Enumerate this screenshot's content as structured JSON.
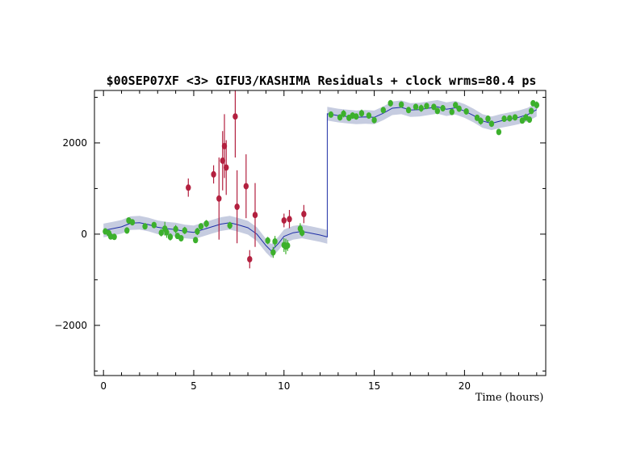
{
  "chart_data": {
    "type": "scatter",
    "title": "$00SEP07XF <3> GIFU3/KASHIMA  Residuals + clock wrms=80.4  ps",
    "xlabel": "Time (hours)",
    "ylabel": "",
    "xlim": [
      -0.5,
      24.5
    ],
    "ylim": [
      -3100,
      3150
    ],
    "xticks": [
      0,
      5,
      10,
      15,
      20
    ],
    "yticks": [
      -2000,
      0,
      2000
    ],
    "grid": false,
    "colors": {
      "used": "#3cb02c",
      "rejected": "#b3203f",
      "clock_line": "#1f2fa6",
      "clock_band": "#c6cce0"
    },
    "series": [
      {
        "role": "used",
        "points": [
          {
            "x": 0.1,
            "y": 60,
            "e": 70
          },
          {
            "x": 0.3,
            "y": 20,
            "e": 60
          },
          {
            "x": 0.4,
            "y": -50,
            "e": 60
          },
          {
            "x": 0.6,
            "y": -60,
            "e": 50
          },
          {
            "x": 1.3,
            "y": 80,
            "e": 70
          },
          {
            "x": 1.4,
            "y": 300,
            "e": 60
          },
          {
            "x": 1.6,
            "y": 260,
            "e": 60
          },
          {
            "x": 2.3,
            "y": 170,
            "e": 60
          },
          {
            "x": 2.8,
            "y": 200,
            "e": 50
          },
          {
            "x": 3.2,
            "y": 30,
            "e": 80
          },
          {
            "x": 3.4,
            "y": 120,
            "e": 150
          },
          {
            "x": 3.5,
            "y": 40,
            "e": 120
          },
          {
            "x": 3.7,
            "y": -60,
            "e": 80
          },
          {
            "x": 4.0,
            "y": 110,
            "e": 90
          },
          {
            "x": 4.1,
            "y": -40,
            "e": 60
          },
          {
            "x": 4.3,
            "y": -90,
            "e": 60
          },
          {
            "x": 4.5,
            "y": 80,
            "e": 80
          },
          {
            "x": 5.1,
            "y": -130,
            "e": 60
          },
          {
            "x": 5.2,
            "y": 60,
            "e": 80
          },
          {
            "x": 5.4,
            "y": 170,
            "e": 70
          },
          {
            "x": 5.7,
            "y": 230,
            "e": 80
          },
          {
            "x": 7.0,
            "y": 190,
            "e": 80
          },
          {
            "x": 9.1,
            "y": -140,
            "e": 80
          },
          {
            "x": 9.4,
            "y": -400,
            "e": 120
          },
          {
            "x": 9.5,
            "y": -160,
            "e": 120
          },
          {
            "x": 10.0,
            "y": -240,
            "e": 150
          },
          {
            "x": 10.1,
            "y": -270,
            "e": 170
          },
          {
            "x": 10.2,
            "y": -250,
            "e": 120
          },
          {
            "x": 10.9,
            "y": 120,
            "e": 120
          },
          {
            "x": 11.0,
            "y": 30,
            "e": 80
          },
          {
            "x": 12.6,
            "y": 2620,
            "e": 60
          },
          {
            "x": 13.1,
            "y": 2560,
            "e": 60
          },
          {
            "x": 13.3,
            "y": 2640,
            "e": 80
          },
          {
            "x": 13.6,
            "y": 2550,
            "e": 60
          },
          {
            "x": 13.8,
            "y": 2600,
            "e": 70
          },
          {
            "x": 14.0,
            "y": 2580,
            "e": 60
          },
          {
            "x": 14.3,
            "y": 2650,
            "e": 80
          },
          {
            "x": 14.7,
            "y": 2600,
            "e": 60
          },
          {
            "x": 15.0,
            "y": 2500,
            "e": 60
          },
          {
            "x": 15.5,
            "y": 2720,
            "e": 60
          },
          {
            "x": 15.9,
            "y": 2870,
            "e": 70
          },
          {
            "x": 16.5,
            "y": 2840,
            "e": 60
          },
          {
            "x": 16.9,
            "y": 2720,
            "e": 60
          },
          {
            "x": 17.3,
            "y": 2790,
            "e": 60
          },
          {
            "x": 17.6,
            "y": 2760,
            "e": 80
          },
          {
            "x": 17.9,
            "y": 2810,
            "e": 60
          },
          {
            "x": 18.3,
            "y": 2790,
            "e": 60
          },
          {
            "x": 18.5,
            "y": 2700,
            "e": 60
          },
          {
            "x": 18.8,
            "y": 2760,
            "e": 70
          },
          {
            "x": 19.3,
            "y": 2680,
            "e": 70
          },
          {
            "x": 19.5,
            "y": 2830,
            "e": 60
          },
          {
            "x": 19.7,
            "y": 2750,
            "e": 60
          },
          {
            "x": 20.1,
            "y": 2690,
            "e": 60
          },
          {
            "x": 20.7,
            "y": 2550,
            "e": 60
          },
          {
            "x": 20.9,
            "y": 2480,
            "e": 80
          },
          {
            "x": 21.3,
            "y": 2530,
            "e": 60
          },
          {
            "x": 21.5,
            "y": 2420,
            "e": 60
          },
          {
            "x": 21.9,
            "y": 2240,
            "e": 60
          },
          {
            "x": 22.2,
            "y": 2530,
            "e": 60
          },
          {
            "x": 22.5,
            "y": 2540,
            "e": 60
          },
          {
            "x": 22.8,
            "y": 2560,
            "e": 60
          },
          {
            "x": 23.2,
            "y": 2490,
            "e": 60
          },
          {
            "x": 23.4,
            "y": 2560,
            "e": 80
          },
          {
            "x": 23.6,
            "y": 2510,
            "e": 60
          },
          {
            "x": 23.7,
            "y": 2700,
            "e": 60
          },
          {
            "x": 23.8,
            "y": 2870,
            "e": 60
          },
          {
            "x": 24.0,
            "y": 2830,
            "e": 80
          }
        ]
      },
      {
        "role": "rejected",
        "points": [
          {
            "x": 4.7,
            "y": 1020,
            "e": 200
          },
          {
            "x": 6.1,
            "y": 1310,
            "e": 200
          },
          {
            "x": 6.4,
            "y": 780,
            "e": 900
          },
          {
            "x": 6.6,
            "y": 1610,
            "e": 650
          },
          {
            "x": 6.7,
            "y": 1930,
            "e": 700
          },
          {
            "x": 6.8,
            "y": 1460,
            "e": 600
          },
          {
            "x": 7.3,
            "y": 2580,
            "e": 900
          },
          {
            "x": 7.4,
            "y": 600,
            "e": 800
          },
          {
            "x": 7.9,
            "y": 1050,
            "e": 700
          },
          {
            "x": 8.1,
            "y": -550,
            "e": 200
          },
          {
            "x": 8.4,
            "y": 420,
            "e": 700
          },
          {
            "x": 10.0,
            "y": 300,
            "e": 150
          },
          {
            "x": 10.3,
            "y": 330,
            "e": 200
          },
          {
            "x": 11.1,
            "y": 440,
            "e": 200
          }
        ]
      }
    ],
    "clock_model": {
      "half_width": 150,
      "segments": [
        [
          [
            0,
            80
          ],
          [
            0.5,
            120
          ],
          [
            1,
            160
          ],
          [
            1.5,
            240
          ],
          [
            2,
            250
          ],
          [
            2.5,
            210
          ],
          [
            3,
            150
          ],
          [
            3.5,
            120
          ],
          [
            4,
            100
          ],
          [
            4.5,
            60
          ],
          [
            5,
            40
          ],
          [
            5.5,
            100
          ],
          [
            6,
            160
          ],
          [
            6.5,
            220
          ],
          [
            7,
            250
          ],
          [
            7.5,
            200
          ],
          [
            8,
            140
          ],
          [
            8.5,
            0
          ],
          [
            9,
            -250
          ],
          [
            9.3,
            -370
          ],
          [
            9.7,
            -200
          ],
          [
            10,
            -50
          ],
          [
            10.5,
            30
          ],
          [
            11,
            60
          ],
          [
            11.5,
            20
          ],
          [
            12,
            -20
          ],
          [
            12.4,
            -60
          ]
        ],
        [
          [
            12.4,
            2640
          ],
          [
            13,
            2600
          ],
          [
            13.5,
            2580
          ],
          [
            14,
            2560
          ],
          [
            14.5,
            2570
          ],
          [
            15,
            2560
          ],
          [
            15.5,
            2650
          ],
          [
            16,
            2760
          ],
          [
            16.5,
            2780
          ],
          [
            17,
            2720
          ],
          [
            17.5,
            2730
          ],
          [
            18,
            2760
          ],
          [
            18.5,
            2790
          ],
          [
            19,
            2740
          ],
          [
            19.5,
            2770
          ],
          [
            20,
            2700
          ],
          [
            20.5,
            2600
          ],
          [
            21,
            2480
          ],
          [
            21.5,
            2430
          ],
          [
            22,
            2480
          ],
          [
            22.5,
            2520
          ],
          [
            23,
            2560
          ],
          [
            23.5,
            2620
          ],
          [
            24,
            2730
          ]
        ]
      ]
    }
  }
}
